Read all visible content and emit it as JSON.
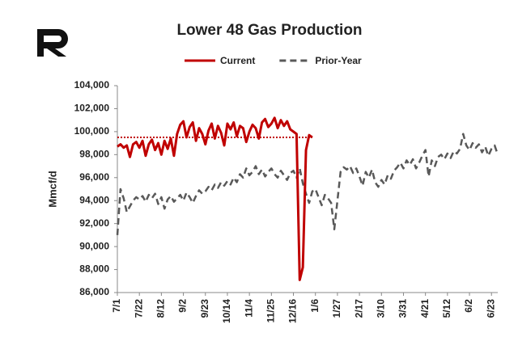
{
  "chart_data": {
    "type": "line",
    "title": "Lower 48 Gas Production",
    "y_label": "Mmcf/d",
    "categories": [
      "7/1",
      null,
      null,
      null,
      null,
      null,
      null,
      "7/22",
      null,
      null,
      null,
      null,
      null,
      null,
      "8/12",
      null,
      null,
      null,
      null,
      null,
      null,
      "9/2",
      null,
      null,
      null,
      null,
      null,
      null,
      "9/23",
      null,
      null,
      null,
      null,
      null,
      null,
      "10/14",
      null,
      null,
      null,
      null,
      null,
      null,
      "11/4",
      null,
      null,
      null,
      null,
      null,
      null,
      "11/25",
      null,
      null,
      null,
      null,
      null,
      null,
      "12/16",
      null,
      null,
      null,
      null,
      null,
      null,
      "1/6",
      null,
      null,
      null,
      null,
      null,
      null,
      "1/27",
      null,
      null,
      null,
      null,
      null,
      null,
      "2/17",
      null,
      null,
      null,
      null,
      null,
      null,
      "3/10",
      null,
      null,
      null,
      null,
      null,
      null,
      "3/31",
      null,
      null,
      null,
      null,
      null,
      null,
      "4/21",
      null,
      null,
      null,
      null,
      null,
      null,
      "5/12",
      null,
      null,
      null,
      null,
      null,
      null,
      "6/2",
      null,
      null,
      null,
      null,
      null,
      null,
      "6/23",
      null,
      null
    ],
    "series": [
      {
        "name": "Current",
        "color": "#c00000",
        "dash": "solid",
        "values": [
          98700,
          98900,
          98600,
          98800,
          97800,
          98900,
          99100,
          98600,
          99200,
          97900,
          98900,
          99300,
          98400,
          99000,
          98000,
          99200,
          98500,
          99400,
          97900,
          99800,
          100600,
          100900,
          99500,
          100400,
          100800,
          99200,
          100300,
          99800,
          98900,
          100100,
          100700,
          99400,
          100500,
          99900,
          98800,
          100700,
          100200,
          100800,
          99600,
          100500,
          100300,
          99100,
          100000,
          100600,
          100300,
          99400,
          100800,
          101100,
          100400,
          100700,
          101200,
          100300,
          101000,
          100500,
          100900,
          100200,
          100000,
          99800,
          87100,
          88200,
          98400,
          99700,
          99500,
          null,
          null,
          null,
          null,
          null,
          null,
          null,
          null,
          null,
          null,
          null,
          null,
          null,
          null,
          null,
          null,
          null,
          null,
          null,
          null,
          null,
          null,
          null,
          null,
          null,
          null,
          null,
          null,
          null,
          null,
          null,
          null,
          null,
          null,
          null,
          null,
          null,
          null,
          null,
          null,
          null,
          null,
          null,
          null,
          null,
          null,
          null,
          null,
          null,
          null,
          null,
          null,
          null,
          null,
          null,
          null,
          null,
          null,
          null
        ]
      },
      {
        "name": "Prior-Year",
        "color": "#595959",
        "dash": "dashed",
        "values": [
          91000,
          95000,
          94200,
          93000,
          93500,
          94000,
          94300,
          94100,
          94400,
          93900,
          94500,
          94200,
          94600,
          93700,
          94300,
          93300,
          94100,
          94400,
          93900,
          94200,
          94500,
          94000,
          94700,
          94300,
          93800,
          94400,
          94900,
          94600,
          94800,
          95200,
          94900,
          95400,
          95100,
          95600,
          95300,
          95700,
          95400,
          96000,
          95600,
          96300,
          96000,
          96800,
          96200,
          96500,
          97000,
          96300,
          96700,
          96100,
          96500,
          96800,
          96300,
          96000,
          96600,
          96200,
          95800,
          96400,
          96600,
          96000,
          96800,
          95500,
          94600,
          93800,
          94800,
          95000,
          94300,
          93600,
          94500,
          94200,
          93800,
          91500,
          94000,
          96500,
          96900,
          96700,
          97000,
          96400,
          96800,
          96100,
          95300,
          96500,
          96000,
          96700,
          95600,
          95200,
          95800,
          95400,
          96200,
          95900,
          96600,
          96900,
          97300,
          96800,
          97500,
          97100,
          97600,
          96800,
          97300,
          97900,
          98400,
          96100,
          97500,
          97000,
          97800,
          98000,
          97600,
          98100,
          97700,
          98300,
          98100,
          98500,
          99800,
          98800,
          98400,
          99000,
          98600,
          98900,
          98200,
          98700,
          97900,
          98500,
          98800,
          98000
        ]
      }
    ],
    "reference_line": {
      "value": 99500,
      "color": "#c00000",
      "from": 0,
      "to": 62
    },
    "ylim": [
      86000,
      104000
    ],
    "yticks": [
      {
        "value": 86000,
        "label": "86,000"
      },
      {
        "value": 88000,
        "label": "88,000"
      },
      {
        "value": 90000,
        "label": "90,000"
      },
      {
        "value": 92000,
        "label": "92,000"
      },
      {
        "value": 94000,
        "label": "94,000"
      },
      {
        "value": 96000,
        "label": "96,000"
      },
      {
        "value": 98000,
        "label": "98,000"
      },
      {
        "value": 100000,
        "label": "100,000"
      },
      {
        "value": 102000,
        "label": "102,000"
      },
      {
        "value": 104000,
        "label": "104,000"
      }
    ],
    "grid": false,
    "legend": "top"
  }
}
